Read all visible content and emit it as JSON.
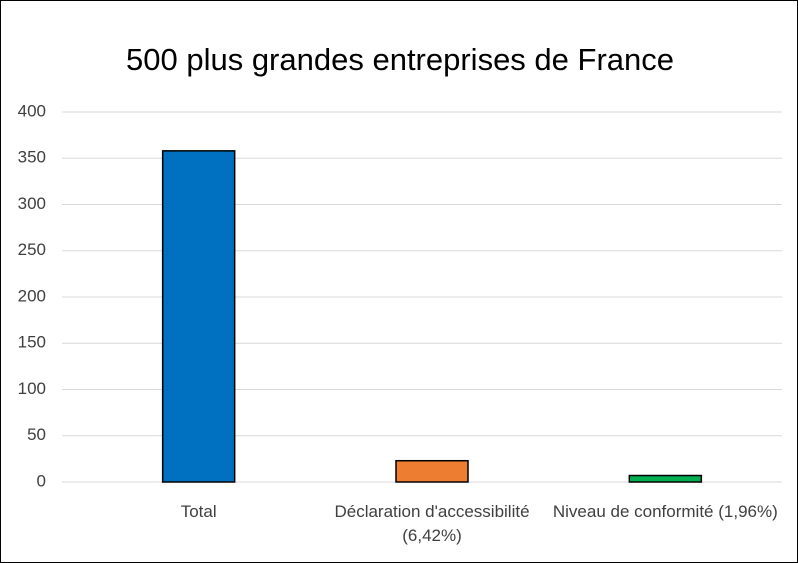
{
  "chart_data": {
    "type": "bar",
    "title": "500 plus grandes entreprises de France",
    "categories": [
      "Total",
      "Déclaration d'accessibilité (6,42%)",
      "Niveau de conformité (1,96%)"
    ],
    "values": [
      358,
      23,
      7
    ],
    "colors": [
      "#0070c0",
      "#ed7d31",
      "#00b050"
    ],
    "ylim": [
      0,
      400
    ],
    "yticks": [
      0,
      50,
      100,
      150,
      200,
      250,
      300,
      350,
      400
    ],
    "grid": true
  }
}
